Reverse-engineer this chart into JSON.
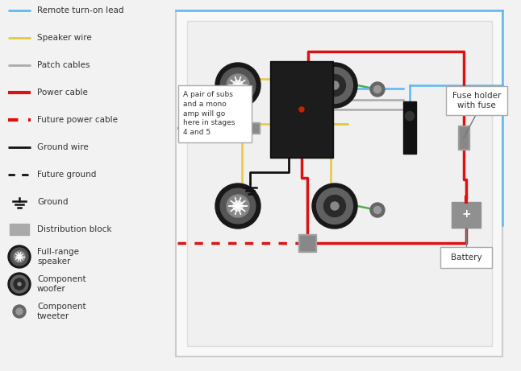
{
  "bg_color": "#f2f2f2",
  "wire_colors": {
    "blue": "#5bb8f5",
    "yellow": "#e8c840",
    "green": "#55aa55",
    "gray": "#aaaaaa",
    "red": "#dd1111",
    "black": "#111111"
  },
  "legend": [
    {
      "label": "Remote turn-on lead",
      "color": "#5bb8f5",
      "style": "solid",
      "lw": 2.0
    },
    {
      "label": "Speaker wire",
      "color": "#e8c840",
      "style": "solid",
      "lw": 2.0
    },
    {
      "label": "Patch cables",
      "color": "#aaaaaa",
      "style": "solid",
      "lw": 2.0
    },
    {
      "label": "Power cable",
      "color": "#dd1111",
      "style": "solid",
      "lw": 3.0
    },
    {
      "label": "Future power cable",
      "color": "#dd1111",
      "style": "dotted",
      "lw": 3.0
    },
    {
      "label": "Ground wire",
      "color": "#111111",
      "style": "solid",
      "lw": 2.0
    },
    {
      "label": "Future ground",
      "color": "#111111",
      "style": "dotted",
      "lw": 2.0
    },
    {
      "label": "Ground",
      "color": "#111111",
      "style": "ground_sym"
    },
    {
      "label": "Distribution block",
      "color": "#aaaaaa",
      "style": "rect_sym"
    },
    {
      "label": "Full-range\nspeaker",
      "color": "#222222",
      "style": "fr_speaker"
    },
    {
      "label": "Component\nwoofer",
      "color": "#222222",
      "style": "woofer"
    },
    {
      "label": "Component\ntweeter",
      "color": "#777777",
      "style": "tweeter"
    }
  ]
}
